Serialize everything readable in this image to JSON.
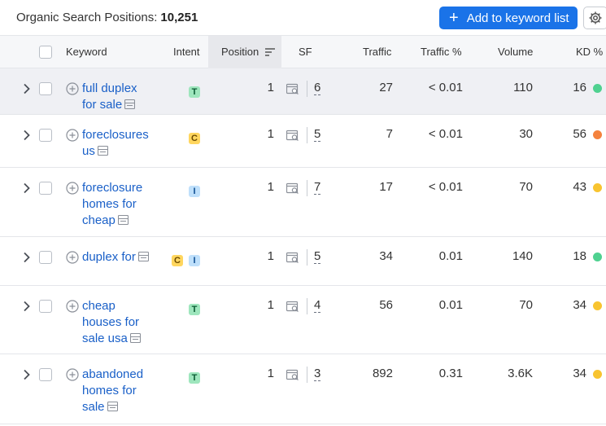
{
  "header": {
    "title_label": "Organic Search Positions:",
    "count": "10,251",
    "add_button_label": "Add to keyword list",
    "add_button_icon": "plus-icon",
    "settings_icon": "gear-icon"
  },
  "columns": [
    "Keyword",
    "Intent",
    "Position",
    "SF",
    "Traffic",
    "Traffic %",
    "Volume",
    "KD %"
  ],
  "intent_colors": {
    "T": "#9ee6bd",
    "C": "#ffd65e",
    "I": "#bfe0fb"
  },
  "kd_colors": {
    "green": "#4fd190",
    "orange": "#f4823d",
    "yellow": "#f8c430"
  },
  "rows": [
    {
      "keyword_lines": [
        "full duplex",
        "for sale"
      ],
      "intents": [
        "T"
      ],
      "position": "1",
      "sf": "6",
      "traffic": "27",
      "traffic_pct": "< 0.01",
      "volume": "110",
      "kd": "16",
      "kd_color": "#4fd190"
    },
    {
      "keyword_lines": [
        "foreclosures",
        "us"
      ],
      "intents": [
        "C"
      ],
      "position": "1",
      "sf": "5",
      "traffic": "7",
      "traffic_pct": "< 0.01",
      "volume": "30",
      "kd": "56",
      "kd_color": "#f4823d"
    },
    {
      "keyword_lines": [
        "foreclosure",
        "homes for",
        "cheap"
      ],
      "intents": [
        "I"
      ],
      "position": "1",
      "sf": "7",
      "traffic": "17",
      "traffic_pct": "< 0.01",
      "volume": "70",
      "kd": "43",
      "kd_color": "#f8c430"
    },
    {
      "keyword_lines": [
        "duplex for"
      ],
      "intents": [
        "C",
        "I"
      ],
      "position": "1",
      "sf": "5",
      "traffic": "34",
      "traffic_pct": "0.01",
      "volume": "140",
      "kd": "18",
      "kd_color": "#4fd190"
    },
    {
      "keyword_lines": [
        "cheap",
        "houses for",
        "sale usa"
      ],
      "intents": [
        "T"
      ],
      "position": "1",
      "sf": "4",
      "traffic": "56",
      "traffic_pct": "0.01",
      "volume": "70",
      "kd": "34",
      "kd_color": "#f8c430"
    },
    {
      "keyword_lines": [
        "abandoned",
        "homes for",
        "sale"
      ],
      "intents": [
        "T"
      ],
      "position": "1",
      "sf": "3",
      "traffic": "892",
      "traffic_pct": "0.31",
      "volume": "3.6K",
      "kd": "34",
      "kd_color": "#f8c430"
    }
  ]
}
